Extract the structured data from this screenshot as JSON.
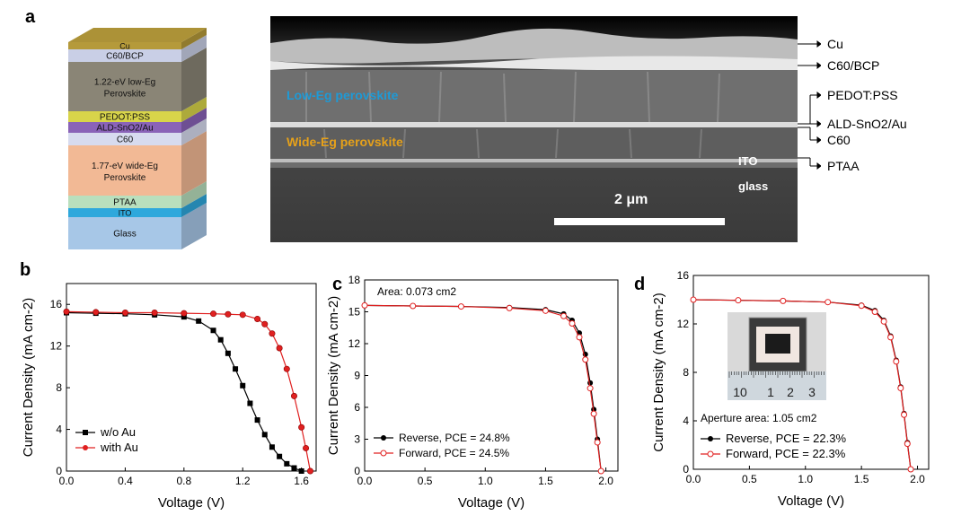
{
  "panel_labels": [
    "a",
    "b",
    "c",
    "d"
  ],
  "stack": {
    "layers": [
      {
        "label": "Cu",
        "color": "#b59a3a"
      },
      {
        "label": "C60/BCP",
        "color": "#c9cfe6"
      },
      {
        "label": "1.22-eV low-Eg",
        "label2": "Perovskite",
        "color": "#8a8576"
      },
      {
        "label": "PEDOT:PSS",
        "color": "#d8d44a"
      },
      {
        "label": "ALD-SnO2/Au",
        "color": "#8a63b8"
      },
      {
        "label": "C60",
        "color": "#d7dbef"
      },
      {
        "label": "1.77-eV wide-Eg",
        "label2": "Perovskite",
        "color": "#f2b995"
      },
      {
        "label": "PTAA",
        "color": "#b9dfbd"
      },
      {
        "label": "ITO",
        "color": "#2ea8dc"
      },
      {
        "label": "Glass",
        "color": "#a7c7e7"
      }
    ]
  },
  "sem": {
    "low_label": "Low-Eg perovskite",
    "wide_label": "Wide-Eg perovskite",
    "ito_label": "ITO",
    "glass_label": "glass",
    "scale_label": "2 μm",
    "callouts": [
      "Cu",
      "C60/BCP",
      "PEDOT:PSS",
      "ALD-SnO2/Au",
      "C60",
      "PTAA"
    ],
    "colors": {
      "low": "#1e9ad6",
      "wide": "#e6a11a"
    }
  },
  "chart_data": [
    {
      "panel": "b",
      "type": "line",
      "xlabel": "Voltage (V)",
      "ylabel": "Current Density (mA cm-2)",
      "xlim": [
        0.0,
        1.7
      ],
      "ylim": [
        0,
        18
      ],
      "xticks": [
        "0.0",
        "0.4",
        "0.8",
        "1.2",
        "1.6"
      ],
      "yticks": [
        "0",
        "4",
        "8",
        "12",
        "16"
      ],
      "legend": "lower-left",
      "series": [
        {
          "name": "w/o Au",
          "color": "#000000",
          "marker": "square",
          "x": [
            0.0,
            0.2,
            0.4,
            0.6,
            0.8,
            0.9,
            1.0,
            1.05,
            1.1,
            1.15,
            1.2,
            1.25,
            1.3,
            1.35,
            1.4,
            1.45,
            1.5,
            1.55,
            1.6
          ],
          "y": [
            15.2,
            15.15,
            15.1,
            15.0,
            14.8,
            14.4,
            13.5,
            12.6,
            11.3,
            9.8,
            8.2,
            6.5,
            4.9,
            3.5,
            2.3,
            1.4,
            0.7,
            0.3,
            0.0
          ]
        },
        {
          "name": "with Au",
          "color": "#e02020",
          "marker": "circle",
          "x": [
            0.0,
            0.2,
            0.4,
            0.6,
            0.8,
            1.0,
            1.1,
            1.2,
            1.3,
            1.35,
            1.4,
            1.45,
            1.5,
            1.55,
            1.6,
            1.63,
            1.66
          ],
          "y": [
            15.3,
            15.25,
            15.2,
            15.2,
            15.15,
            15.1,
            15.05,
            15.0,
            14.6,
            14.1,
            13.2,
            11.8,
            9.8,
            7.2,
            4.2,
            2.2,
            0.0
          ]
        }
      ]
    },
    {
      "panel": "c",
      "type": "line",
      "xlabel": "Voltage (V)",
      "ylabel": "Current Density (mA cm-2)",
      "xlim": [
        0.0,
        2.1
      ],
      "ylim": [
        0,
        18
      ],
      "xticks": [
        "0.0",
        "0.5",
        "1.0",
        "1.5",
        "2.0"
      ],
      "yticks": [
        "0",
        "3",
        "6",
        "9",
        "12",
        "15",
        "18"
      ],
      "annotation": "Area: 0.073 cm2",
      "legend": "lower-left",
      "series": [
        {
          "name": "Reverse, PCE = 24.8%",
          "color": "#000000",
          "marker": "filled-circle",
          "x": [
            0.0,
            0.4,
            0.8,
            1.2,
            1.5,
            1.65,
            1.72,
            1.78,
            1.83,
            1.87,
            1.9,
            1.93,
            1.96
          ],
          "y": [
            15.6,
            15.55,
            15.5,
            15.4,
            15.2,
            14.8,
            14.2,
            13.0,
            11.0,
            8.3,
            5.8,
            3.0,
            0.0
          ]
        },
        {
          "name": "Forward, PCE = 24.5%",
          "color": "#e02020",
          "marker": "open-circle",
          "x": [
            0.0,
            0.4,
            0.8,
            1.2,
            1.5,
            1.65,
            1.72,
            1.78,
            1.83,
            1.87,
            1.9,
            1.93,
            1.96
          ],
          "y": [
            15.6,
            15.55,
            15.5,
            15.35,
            15.1,
            14.6,
            13.9,
            12.6,
            10.5,
            7.8,
            5.4,
            2.7,
            0.0
          ]
        }
      ]
    },
    {
      "panel": "d",
      "type": "line",
      "xlabel": "Voltage (V)",
      "ylabel": "Current Density (mA cm-2)",
      "xlim": [
        0.0,
        2.1
      ],
      "ylim": [
        0,
        16
      ],
      "xticks": [
        "0.0",
        "0.5",
        "1.0",
        "1.5",
        "2.0"
      ],
      "yticks": [
        "0",
        "4",
        "8",
        "12",
        "16"
      ],
      "annotation": "Aperture area: 1.05 cm2",
      "inset_ruler_labels": [
        "10",
        "1",
        "2",
        "3"
      ],
      "legend": "lower-left",
      "series": [
        {
          "name": "Reverse, PCE = 22.3%",
          "color": "#000000",
          "marker": "filled-circle",
          "x": [
            0.0,
            0.4,
            0.8,
            1.2,
            1.5,
            1.62,
            1.7,
            1.76,
            1.81,
            1.85,
            1.88,
            1.91,
            1.94
          ],
          "y": [
            14.0,
            13.95,
            13.9,
            13.8,
            13.55,
            13.1,
            12.3,
            11.0,
            9.0,
            6.8,
            4.6,
            2.2,
            0.0
          ]
        },
        {
          "name": "Forward, PCE = 22.3%",
          "color": "#e02020",
          "marker": "open-circle",
          "x": [
            0.0,
            0.4,
            0.8,
            1.2,
            1.5,
            1.62,
            1.7,
            1.76,
            1.81,
            1.85,
            1.88,
            1.91,
            1.94
          ],
          "y": [
            14.0,
            13.95,
            13.9,
            13.8,
            13.5,
            13.0,
            12.2,
            10.9,
            8.9,
            6.7,
            4.5,
            2.1,
            0.0
          ]
        }
      ]
    }
  ]
}
